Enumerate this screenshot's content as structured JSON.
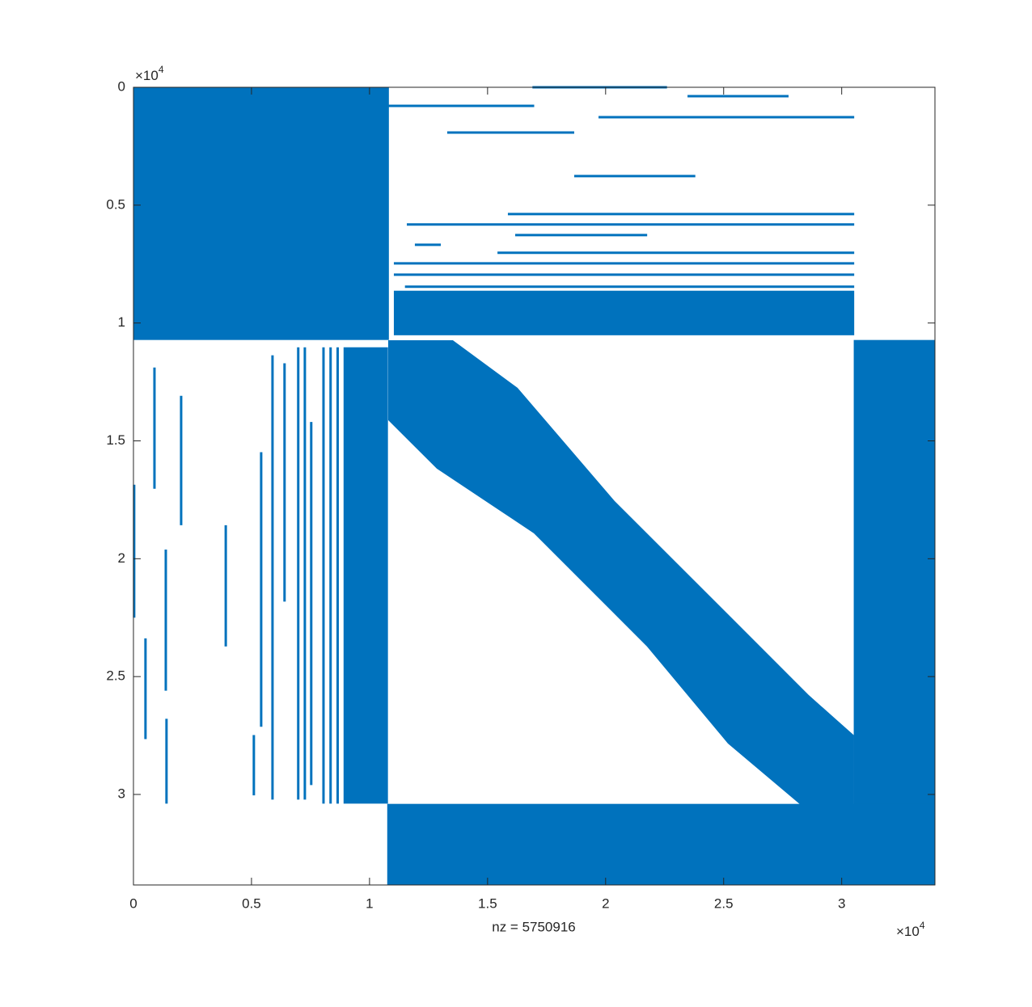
{
  "chart_data": {
    "type": "spy",
    "xlabel": "nz = 5750916",
    "color": "#0072bd",
    "xlim": [
      0,
      33950
    ],
    "ylim": [
      0,
      33840
    ],
    "ydir": "reverse",
    "xticks": [
      0,
      {
        "value": 5000,
        "label": "0.5"
      },
      {
        "value": 10000,
        "label": "1"
      },
      {
        "value": 15000,
        "label": "1.5"
      },
      {
        "value": 20000,
        "label": "2"
      },
      {
        "value": 25000,
        "label": "2.5"
      },
      {
        "value": 30000,
        "label": "3"
      }
    ],
    "yticks": [
      0,
      {
        "value": 5000,
        "label": "0.5"
      },
      {
        "value": 10000,
        "label": "1"
      },
      {
        "value": 15000,
        "label": "1.5"
      },
      {
        "value": 20000,
        "label": "2"
      },
      {
        "value": 25000,
        "label": "2.5"
      },
      {
        "value": 30000,
        "label": "3"
      }
    ],
    "x_multiplier": {
      "base": "×10",
      "exponent": "4"
    },
    "y_multiplier": {
      "base": "×10",
      "exponent": "4"
    },
    "blocks": [
      [
        0,
        10820,
        0,
        10720
      ],
      [
        30510,
        33950,
        10720,
        33840
      ],
      [
        10750,
        33950,
        30400,
        33840
      ],
      [
        11030,
        30530,
        8630,
        10520
      ],
      [
        8900,
        10780,
        11030,
        30390
      ]
    ],
    "band": {
      "x": [
        10790,
        13530,
        16270,
        20380,
        25180,
        28600,
        30520,
        30520,
        28260,
        25180,
        21750,
        16960,
        12850,
        10790
      ],
      "y": [
        10730,
        10730,
        12750,
        17550,
        22350,
        25780,
        27490,
        30440,
        30440,
        27840,
        23720,
        18920,
        16180,
        14120
      ]
    },
    "hlines": [
      [
        16900,
        22600,
        0
      ],
      [
        9360,
        16975,
        787
      ],
      [
        23470,
        27750,
        376
      ],
      [
        19700,
        30530,
        1268
      ],
      [
        13290,
        18670,
        1918
      ],
      [
        18670,
        23800,
        3768
      ],
      [
        15860,
        30530,
        5380
      ],
      [
        11580,
        30530,
        5820
      ],
      [
        16170,
        21760,
        6270
      ],
      [
        11920,
        13020,
        6680
      ],
      [
        15420,
        30530,
        7020
      ],
      [
        11030,
        30530,
        7470
      ],
      [
        11030,
        30530,
        7950
      ],
      [
        11500,
        30530,
        8460
      ]
    ],
    "vlines": [
      [
        30,
        16860,
        22500
      ],
      [
        890,
        11890,
        17030
      ],
      [
        1370,
        19610,
        25600
      ],
      [
        2020,
        13090,
        18580
      ],
      [
        3910,
        18580,
        23720
      ],
      [
        510,
        23380,
        27650
      ],
      [
        1400,
        26790,
        30390
      ],
      [
        5100,
        27480,
        30040
      ],
      [
        5410,
        15480,
        27130
      ],
      [
        5890,
        11370,
        30220
      ],
      [
        6400,
        11710,
        21820
      ],
      [
        6980,
        11030,
        30220
      ],
      [
        7260,
        11030,
        30220
      ],
      [
        7530,
        14200,
        29600
      ],
      [
        8050,
        11030,
        30390
      ],
      [
        8350,
        11030,
        30390
      ],
      [
        8650,
        11030,
        30390
      ]
    ]
  }
}
